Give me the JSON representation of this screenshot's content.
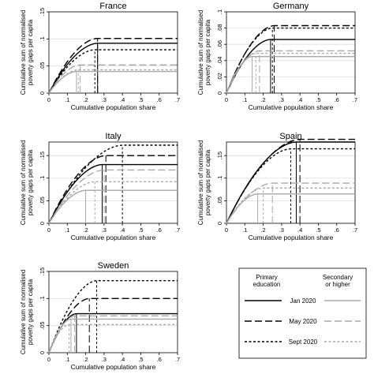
{
  "chart_data": [
    {
      "type": "line",
      "title": "France",
      "xlabel": "Cumulative population share",
      "ylabel": "Cumulative sum of normalised poverty gaps per capita",
      "xlim": [
        0,
        0.7
      ],
      "ylim": [
        0,
        0.15
      ],
      "xticks": [
        "0",
        ".1",
        ".2",
        ".3",
        ".4",
        ".5",
        ".6",
        ".7"
      ],
      "yticks": [
        "0",
        ".05",
        ".1",
        ".15"
      ],
      "grid": true,
      "series": [
        {
          "education": "primary",
          "period": "Jan 2020",
          "knee": 0.265,
          "plateau": 0.092
        },
        {
          "education": "primary",
          "period": "May 2020",
          "knee": 0.265,
          "plateau": 0.101
        },
        {
          "education": "primary",
          "period": "Sept 2020",
          "knee": 0.25,
          "plateau": 0.08
        },
        {
          "education": "secondary",
          "period": "Jan 2020",
          "knee": 0.15,
          "plateau": 0.04
        },
        {
          "education": "secondary",
          "period": "May 2020",
          "knee": 0.17,
          "plateau": 0.052
        },
        {
          "education": "secondary",
          "period": "Sept 2020",
          "knee": 0.16,
          "plateau": 0.043
        }
      ]
    },
    {
      "type": "line",
      "title": "Germany",
      "xlabel": "Cumulative population share",
      "ylabel": "Cumulative sum of normalised poverty gaps per capita",
      "xlim": [
        0,
        0.7
      ],
      "ylim": [
        0,
        0.1
      ],
      "xticks": [
        "0",
        ".1",
        ".2",
        ".3",
        ".4",
        ".5",
        ".6",
        ".7"
      ],
      "yticks": [
        "0",
        ".02",
        ".04",
        ".06",
        ".08",
        ".1"
      ],
      "grid": true,
      "series": [
        {
          "education": "primary",
          "period": "Jan 2020",
          "knee": 0.24,
          "plateau": 0.066
        },
        {
          "education": "primary",
          "period": "May 2020",
          "knee": 0.26,
          "plateau": 0.083
        },
        {
          "education": "primary",
          "period": "Sept 2020",
          "knee": 0.25,
          "plateau": 0.08
        },
        {
          "education": "secondary",
          "period": "Jan 2020",
          "knee": 0.14,
          "plateau": 0.045
        },
        {
          "education": "secondary",
          "period": "May 2020",
          "knee": 0.18,
          "plateau": 0.052
        },
        {
          "education": "secondary",
          "period": "Sept 2020",
          "knee": 0.16,
          "plateau": 0.049
        }
      ]
    },
    {
      "type": "line",
      "title": "Italy",
      "xlabel": "Cumulative population share",
      "ylabel": "Cumulative sum of normalised poverty gaps per capita",
      "xlim": [
        0,
        0.7
      ],
      "ylim": [
        0,
        0.18
      ],
      "xticks": [
        "0",
        ".1",
        ".2",
        ".3",
        ".4",
        ".5",
        ".6",
        ".7"
      ],
      "yticks": [
        "0",
        ".05",
        ".1",
        ".15"
      ],
      "grid": true,
      "series": [
        {
          "education": "primary",
          "period": "Jan 2020",
          "knee": 0.29,
          "plateau": 0.13
        },
        {
          "education": "primary",
          "period": "May 2020",
          "knee": 0.31,
          "plateau": 0.15
        },
        {
          "education": "primary",
          "period": "Sept 2020",
          "knee": 0.4,
          "plateau": 0.173
        },
        {
          "education": "secondary",
          "period": "Jan 2020",
          "knee": 0.2,
          "plateau": 0.073
        },
        {
          "education": "secondary",
          "period": "May 2020",
          "knee": 0.3,
          "plateau": 0.118
        },
        {
          "education": "secondary",
          "period": "Sept 2020",
          "knee": 0.25,
          "plateau": 0.092
        }
      ]
    },
    {
      "type": "line",
      "title": "Spain",
      "xlabel": "Cumulative population share",
      "ylabel": "Cumulative sum of normalised poverty gaps per capita",
      "xlim": [
        0,
        0.7
      ],
      "ylim": [
        0,
        0.18
      ],
      "xticks": [
        "0",
        ".1",
        ".2",
        ".3",
        ".4",
        ".5",
        ".6",
        ".7"
      ],
      "yticks": [
        "0",
        ".05",
        ".1",
        ".15"
      ],
      "grid": true,
      "series": [
        {
          "education": "primary",
          "period": "Jan 2020",
          "knee": 0.38,
          "plateau": 0.18
        },
        {
          "education": "primary",
          "period": "May 2020",
          "knee": 0.4,
          "plateau": 0.186
        },
        {
          "education": "primary",
          "period": "Sept 2020",
          "knee": 0.35,
          "plateau": 0.165
        },
        {
          "education": "secondary",
          "period": "Jan 2020",
          "knee": 0.17,
          "plateau": 0.065
        },
        {
          "education": "secondary",
          "period": "May 2020",
          "knee": 0.25,
          "plateau": 0.089
        },
        {
          "education": "secondary",
          "period": "Sept 2020",
          "knee": 0.2,
          "plateau": 0.078
        }
      ]
    },
    {
      "type": "line",
      "title": "Sweden",
      "xlabel": "Cumulative population share",
      "ylabel": "Cumulative sum of normalised poverty gaps per capita",
      "xlim": [
        0,
        0.7
      ],
      "ylim": [
        0,
        0.15
      ],
      "xticks": [
        "0",
        ".1",
        ".2",
        ".3",
        ".4",
        ".5",
        ".6",
        ".7"
      ],
      "yticks": [
        "0",
        ".05",
        ".1",
        ".15"
      ],
      "grid": true,
      "series": [
        {
          "education": "primary",
          "period": "Jan 2020",
          "knee": 0.15,
          "plateau": 0.072
        },
        {
          "education": "primary",
          "period": "May 2020",
          "knee": 0.22,
          "plateau": 0.1
        },
        {
          "education": "primary",
          "period": "Sept 2020",
          "knee": 0.26,
          "plateau": 0.133
        },
        {
          "education": "secondary",
          "period": "Jan 2020",
          "knee": 0.12,
          "plateau": 0.062
        },
        {
          "education": "secondary",
          "period": "May 2020",
          "knee": 0.14,
          "plateau": 0.068
        },
        {
          "education": "secondary",
          "period": "Sept 2020",
          "knee": 0.11,
          "plateau": 0.052
        }
      ]
    }
  ],
  "legend": {
    "header_primary": [
      "Primary",
      "education"
    ],
    "header_secondary": [
      "Secondary",
      "or higher"
    ],
    "rows": [
      "Jan 2020",
      "May 2020",
      "Sept 2020"
    ]
  },
  "colors": {
    "primary": "#000000",
    "secondary": "#a8a8a8",
    "grid": "#dddddd",
    "frame": "#000000"
  },
  "line_styles": {
    "Jan 2020": "solid",
    "May 2020": "long-dash",
    "Sept 2020": "short-dash"
  }
}
